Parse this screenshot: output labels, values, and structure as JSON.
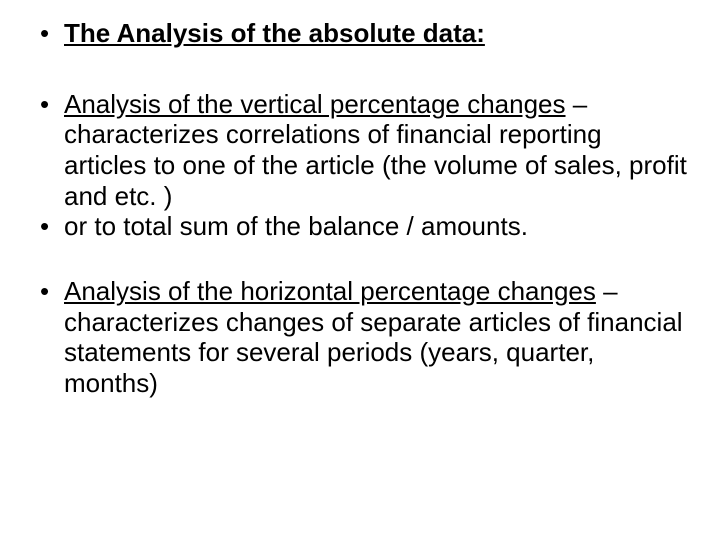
{
  "bullets": {
    "b1_underlined_bold": "The Analysis of the absolute data:",
    "b2_underlined": "Analysis of the vertical percentage changes",
    "b2_rest": " – characterizes correlations of  financial reporting articles to one of the article (the volume of sales, profit and etc. )",
    "b3": "or to total sum of the balance / amounts.",
    "b4_underlined": "Analysis of the horizontal percentage changes",
    "b4_rest": " – characterizes changes of separate articles of financial statements for several periods (years, quarter, months)"
  }
}
